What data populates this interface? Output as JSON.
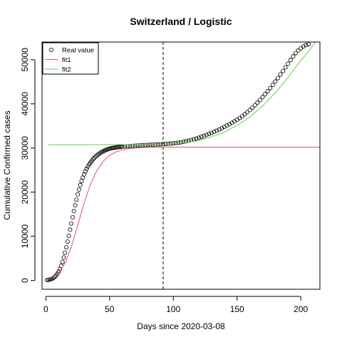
{
  "chart_data": {
    "type": "line",
    "title": "Switzerland / Logistic",
    "xlabel": "Days since 2020-03-08",
    "ylabel": "Cumulative Confirmed cases",
    "xlim": [
      -3,
      215
    ],
    "ylim": [
      -2000,
      54000
    ],
    "xticks": [
      0,
      50,
      100,
      150,
      200
    ],
    "yticks": [
      0,
      10000,
      20000,
      30000,
      40000,
      50000
    ],
    "vline_x": 92,
    "legend_position": "top-left",
    "legend": [
      {
        "label": "Real value",
        "kind": "point",
        "color": "#000000"
      },
      {
        "label": "fit1",
        "kind": "line",
        "color": "#df536b"
      },
      {
        "label": "fit2",
        "kind": "line",
        "color": "#61d04f"
      }
    ],
    "series": [
      {
        "name": "Real value",
        "kind": "points",
        "color": "#000000",
        "x": [
          1,
          2,
          3,
          4,
          5,
          6,
          7,
          8,
          9,
          10,
          11,
          12,
          13,
          14,
          15,
          16,
          17,
          18,
          19,
          20,
          21,
          22,
          23,
          24,
          25,
          26,
          27,
          28,
          29,
          30,
          31,
          32,
          33,
          34,
          35,
          36,
          37,
          38,
          39,
          40,
          41,
          42,
          43,
          44,
          45,
          46,
          47,
          48,
          49,
          50,
          51,
          52,
          53,
          54,
          55,
          56,
          57,
          58,
          59,
          60,
          62,
          64,
          66,
          68,
          70,
          72,
          74,
          76,
          78,
          80,
          82,
          84,
          86,
          88,
          90,
          92,
          94,
          96,
          98,
          100,
          102,
          104,
          106,
          108,
          110,
          112,
          114,
          116,
          118,
          120,
          122,
          124,
          126,
          128,
          130,
          132,
          134,
          136,
          138,
          140,
          142,
          144,
          146,
          148,
          150,
          152,
          154,
          156,
          158,
          160,
          162,
          164,
          166,
          168,
          170,
          172,
          174,
          176,
          178,
          180,
          182,
          184,
          186,
          188,
          190,
          192,
          194,
          196,
          198,
          200,
          202,
          204,
          206
        ],
        "y": [
          100,
          150,
          220,
          300,
          420,
          580,
          800,
          1100,
          1500,
          2000,
          2600,
          3300,
          4200,
          5200,
          6300,
          7500,
          8800,
          10100,
          11500,
          12900,
          14300,
          15700,
          17000,
          18300,
          19500,
          20600,
          21600,
          22500,
          23300,
          24000,
          24700,
          25300,
          25800,
          26300,
          26700,
          27100,
          27450,
          27750,
          28050,
          28300,
          28550,
          28750,
          28950,
          29100,
          29250,
          29400,
          29530,
          29640,
          29740,
          29830,
          29910,
          29980,
          30040,
          30090,
          30140,
          30180,
          30220,
          30250,
          30280,
          30310,
          30360,
          30410,
          30450,
          30490,
          30520,
          30560,
          30590,
          30620,
          30650,
          30680,
          30710,
          30740,
          30770,
          30800,
          30830,
          30870,
          30910,
          30950,
          31000,
          31060,
          31130,
          31210,
          31300,
          31400,
          31520,
          31650,
          31800,
          31960,
          32130,
          32320,
          32520,
          32730,
          32950,
          33180,
          33420,
          33670,
          33930,
          34200,
          34480,
          34770,
          35070,
          35380,
          35700,
          36040,
          36400,
          36780,
          37190,
          37630,
          38100,
          38600,
          39130,
          39690,
          40280,
          40890,
          41520,
          42170,
          42850,
          43560,
          44300,
          45060,
          45840,
          46640,
          47450,
          48270,
          49100,
          49920,
          50720,
          51480,
          52100,
          52600,
          53000,
          53300,
          53500
        ]
      },
      {
        "name": "fit1",
        "kind": "line",
        "color": "#df536b",
        "x": [
          1,
          5,
          10,
          15,
          20,
          25,
          30,
          35,
          40,
          45,
          50,
          55,
          60,
          65,
          70,
          80,
          90,
          100,
          120,
          150,
          180,
          215
        ],
        "y": [
          400,
          750,
          1700,
          3900,
          7600,
          12500,
          17500,
          21800,
          24900,
          27000,
          28300,
          29100,
          29600,
          29850,
          30000,
          30150,
          30190,
          30200,
          30200,
          30200,
          30200,
          30200
        ]
      },
      {
        "name": "fit2",
        "kind": "line",
        "color": "#61d04f",
        "x": [
          2,
          20,
          40,
          60,
          80,
          90,
          100,
          110,
          120,
          130,
          140,
          150,
          160,
          170,
          180,
          190,
          200,
          207,
          212
        ],
        "y": [
          30750,
          30750,
          30760,
          30780,
          30800,
          30850,
          30950,
          31200,
          31700,
          32500,
          33600,
          35100,
          37000,
          39500,
          42500,
          46000,
          49800,
          52200,
          54200
        ]
      }
    ]
  }
}
